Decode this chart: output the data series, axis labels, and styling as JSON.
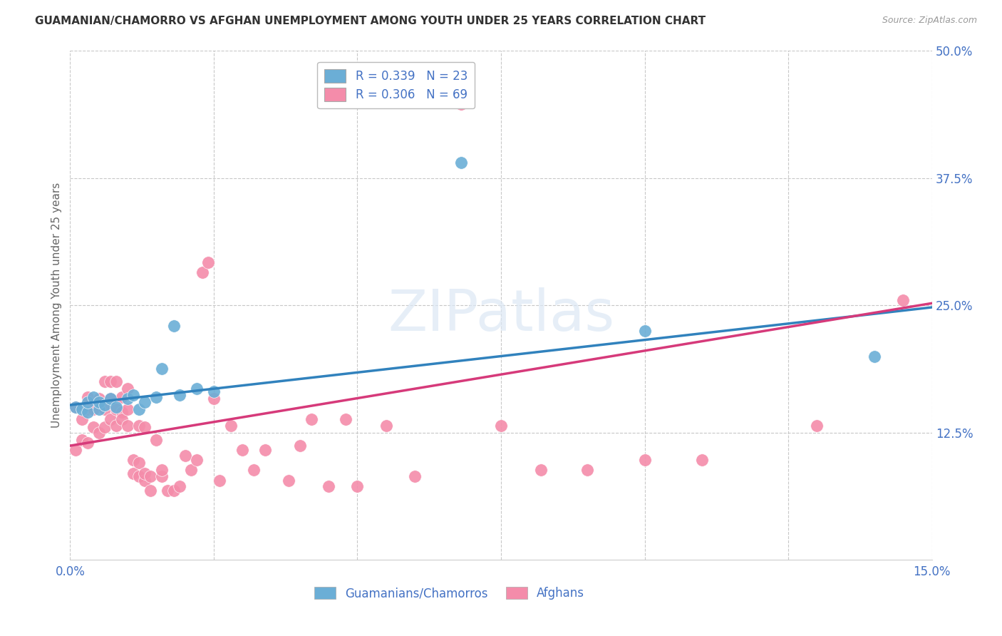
{
  "title": "GUAMANIAN/CHAMORRO VS AFGHAN UNEMPLOYMENT AMONG YOUTH UNDER 25 YEARS CORRELATION CHART",
  "source": "Source: ZipAtlas.com",
  "ylabel": "Unemployment Among Youth under 25 years",
  "xlim": [
    0.0,
    0.15
  ],
  "ylim": [
    0.0,
    0.5
  ],
  "xtick_positions": [
    0.0,
    0.025,
    0.05,
    0.075,
    0.1,
    0.125,
    0.15
  ],
  "xticklabels": [
    "0.0%",
    "",
    "",
    "",
    "",
    "",
    "15.0%"
  ],
  "yticks_right": [
    0.125,
    0.25,
    0.375,
    0.5
  ],
  "ytick_labels_right": [
    "12.5%",
    "25.0%",
    "37.5%",
    "50.0%"
  ],
  "legend_line1": "R = 0.339   N = 23",
  "legend_line2": "R = 0.306   N = 69",
  "legend_label_blue": "Guamanians/Chamorros",
  "legend_label_pink": "Afghans",
  "blue_color": "#6baed6",
  "pink_color": "#f48caa",
  "trend_blue_color": "#3182bd",
  "trend_pink_color": "#d63a7a",
  "watermark": "ZIPatlas",
  "blue_scatter_x": [
    0.001,
    0.002,
    0.003,
    0.003,
    0.004,
    0.005,
    0.005,
    0.006,
    0.007,
    0.008,
    0.01,
    0.011,
    0.012,
    0.013,
    0.015,
    0.016,
    0.018,
    0.019,
    0.022,
    0.025,
    0.068,
    0.1,
    0.14
  ],
  "blue_scatter_y": [
    0.15,
    0.148,
    0.145,
    0.155,
    0.16,
    0.148,
    0.155,
    0.152,
    0.158,
    0.15,
    0.158,
    0.162,
    0.148,
    0.155,
    0.16,
    0.188,
    0.23,
    0.162,
    0.168,
    0.165,
    0.39,
    0.225,
    0.2
  ],
  "pink_scatter_x": [
    0.001,
    0.001,
    0.002,
    0.002,
    0.003,
    0.003,
    0.003,
    0.004,
    0.004,
    0.005,
    0.005,
    0.006,
    0.006,
    0.006,
    0.007,
    0.007,
    0.007,
    0.008,
    0.008,
    0.008,
    0.009,
    0.009,
    0.009,
    0.01,
    0.01,
    0.01,
    0.011,
    0.011,
    0.012,
    0.012,
    0.012,
    0.013,
    0.013,
    0.013,
    0.014,
    0.014,
    0.015,
    0.016,
    0.016,
    0.017,
    0.018,
    0.019,
    0.02,
    0.021,
    0.022,
    0.023,
    0.024,
    0.025,
    0.026,
    0.028,
    0.03,
    0.032,
    0.034,
    0.038,
    0.04,
    0.042,
    0.045,
    0.048,
    0.05,
    0.055,
    0.06,
    0.068,
    0.075,
    0.082,
    0.09,
    0.1,
    0.11,
    0.13,
    0.145
  ],
  "pink_scatter_y": [
    0.15,
    0.108,
    0.138,
    0.118,
    0.16,
    0.148,
    0.115,
    0.13,
    0.148,
    0.125,
    0.158,
    0.13,
    0.148,
    0.175,
    0.138,
    0.158,
    0.175,
    0.132,
    0.148,
    0.175,
    0.145,
    0.16,
    0.138,
    0.132,
    0.148,
    0.168,
    0.085,
    0.098,
    0.082,
    0.095,
    0.132,
    0.078,
    0.085,
    0.13,
    0.068,
    0.082,
    0.118,
    0.082,
    0.088,
    0.068,
    0.068,
    0.072,
    0.102,
    0.088,
    0.098,
    0.282,
    0.292,
    0.158,
    0.078,
    0.132,
    0.108,
    0.088,
    0.108,
    0.078,
    0.112,
    0.138,
    0.072,
    0.138,
    0.072,
    0.132,
    0.082,
    0.448,
    0.132,
    0.088,
    0.088,
    0.098,
    0.098,
    0.132,
    0.255
  ],
  "blue_trend_x": [
    0.0,
    0.15
  ],
  "blue_trend_y": [
    0.152,
    0.248
  ],
  "pink_trend_x": [
    0.0,
    0.15
  ],
  "pink_trend_y": [
    0.112,
    0.252
  ],
  "title_fontsize": 11,
  "axis_label_color": "#4472c4",
  "grid_color": "#c8c8c8",
  "background_color": "#ffffff"
}
